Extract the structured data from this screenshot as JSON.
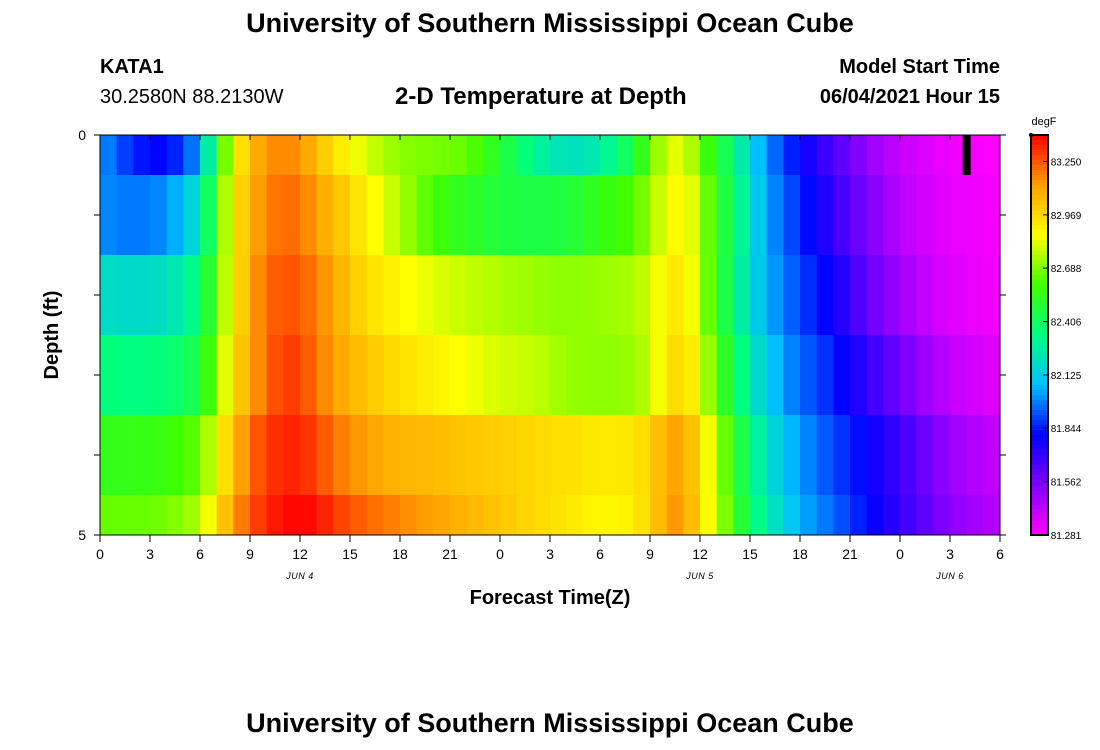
{
  "header": {
    "title": "University of Southern Mississippi Ocean Cube",
    "station": "KATA1",
    "coordinates": "30.2580N  88.2130W",
    "plot_title": "2-D Temperature at Depth",
    "model_start_label": "Model Start Time",
    "model_start_value": "06/04/2021 Hour 15"
  },
  "footer": {
    "title": "University of Southern Mississippi Ocean Cube"
  },
  "colors": {
    "palette": [
      "#ff00ff",
      "#8000ff",
      "#0000ff",
      "#00c0ff",
      "#00ff80",
      "#40ff00",
      "#ffff00",
      "#ffa000",
      "#ff0000"
    ]
  },
  "chart_data": {
    "type": "heatmap",
    "xlabel": "Forecast Time(Z)",
    "ylabel": "Depth (ft)",
    "x_tick_labels": [
      "0",
      "3",
      "6",
      "9",
      "12",
      "15",
      "18",
      "21",
      "0",
      "3",
      "6",
      "9",
      "12",
      "15",
      "18",
      "21",
      "0",
      "3",
      "6"
    ],
    "x_hours": [
      0,
      3,
      6,
      9,
      12,
      15,
      18,
      21,
      24,
      27,
      30,
      33,
      36,
      39,
      42,
      45,
      48,
      51,
      54
    ],
    "date_labels": [
      {
        "text": "JUN 4",
        "hour": 12
      },
      {
        "text": "JUN 5",
        "hour": 36
      },
      {
        "text": "JUN 6",
        "hour": 51
      }
    ],
    "y_tick_labels": [
      "0",
      "5"
    ],
    "ylim": [
      0,
      5
    ],
    "xlim": [
      0,
      54
    ],
    "layer_depths_ft": [
      0.25,
      1.0,
      2.0,
      3.0,
      4.0,
      4.75
    ],
    "layer_bounds_ft": [
      0,
      0.5,
      1.5,
      2.5,
      3.5,
      4.5,
      5.0
    ],
    "colorbar": {
      "unit": "degF",
      "tick_labels": [
        "83.250",
        "82.969",
        "82.688",
        "82.406",
        "82.125",
        "81.844",
        "81.562",
        "81.281"
      ],
      "range": [
        81.281,
        83.39
      ]
    },
    "hours": [
      0,
      2,
      4,
      6,
      7,
      8,
      9,
      10,
      11,
      12,
      13,
      14,
      16,
      18,
      20,
      22,
      24,
      26,
      28,
      30,
      32,
      33,
      34,
      35,
      36,
      37,
      38,
      39,
      40,
      41,
      42,
      44,
      46,
      48,
      50,
      52,
      54
    ],
    "layers": [
      {
        "depth_ft": 0.25,
        "values": [
          82.02,
          81.85,
          81.8,
          82.02,
          82.5,
          82.85,
          83.05,
          83.15,
          83.17,
          83.15,
          83.05,
          82.95,
          82.8,
          82.7,
          82.68,
          82.65,
          82.5,
          82.3,
          82.2,
          82.25,
          82.45,
          82.65,
          82.8,
          82.85,
          82.65,
          82.5,
          82.35,
          82.15,
          82.0,
          81.9,
          81.8,
          81.65,
          81.5,
          81.4,
          81.34,
          81.3,
          81.28
        ]
      },
      {
        "depth_ft": 1.0,
        "values": [
          82.0,
          81.97,
          82.0,
          82.2,
          82.6,
          82.9,
          83.08,
          83.18,
          83.22,
          83.2,
          83.12,
          83.05,
          82.9,
          82.75,
          82.6,
          82.52,
          82.47,
          82.45,
          82.47,
          82.55,
          82.62,
          82.72,
          82.85,
          82.9,
          82.75,
          82.55,
          82.38,
          82.2,
          82.03,
          81.95,
          81.86,
          81.7,
          81.55,
          81.43,
          81.35,
          81.32,
          81.3
        ]
      },
      {
        "depth_ft": 2.0,
        "values": [
          82.2,
          82.18,
          82.2,
          82.35,
          82.65,
          82.9,
          83.1,
          83.22,
          83.26,
          83.24,
          83.18,
          83.1,
          82.95,
          82.88,
          82.82,
          82.78,
          82.75,
          82.72,
          82.7,
          82.72,
          82.75,
          82.8,
          82.9,
          82.95,
          82.75,
          82.55,
          82.35,
          82.18,
          82.05,
          81.98,
          81.9,
          81.78,
          81.6,
          81.48,
          81.38,
          81.33,
          81.3
        ]
      },
      {
        "depth_ft": 3.0,
        "values": [
          82.35,
          82.33,
          82.35,
          82.45,
          82.7,
          82.95,
          83.1,
          83.22,
          83.3,
          83.28,
          83.2,
          83.12,
          83.02,
          82.95,
          82.9,
          82.85,
          82.8,
          82.78,
          82.72,
          82.7,
          82.72,
          82.78,
          82.92,
          83.0,
          82.82,
          82.62,
          82.42,
          82.25,
          82.12,
          82.02,
          81.95,
          81.85,
          81.7,
          81.58,
          81.45,
          81.38,
          81.34
        ]
      },
      {
        "depth_ft": 4.0,
        "values": [
          82.55,
          82.55,
          82.57,
          82.65,
          82.85,
          83.05,
          83.2,
          83.3,
          83.33,
          83.33,
          83.28,
          83.2,
          83.12,
          83.07,
          83.05,
          83.02,
          83.0,
          82.97,
          82.95,
          82.92,
          82.93,
          82.98,
          83.1,
          83.12,
          82.95,
          82.75,
          82.55,
          82.35,
          82.2,
          82.1,
          82.02,
          81.9,
          81.8,
          81.68,
          81.55,
          81.45,
          81.4
        ]
      },
      {
        "depth_ft": 4.75,
        "values": [
          82.65,
          82.65,
          82.67,
          82.75,
          82.95,
          83.12,
          83.25,
          83.33,
          83.37,
          83.39,
          83.36,
          83.3,
          83.22,
          83.17,
          83.12,
          83.07,
          83.02,
          82.97,
          82.93,
          82.88,
          82.9,
          82.98,
          83.12,
          83.15,
          82.95,
          82.78,
          82.58,
          82.4,
          82.25,
          82.15,
          82.05,
          81.95,
          81.82,
          81.7,
          81.58,
          81.48,
          81.43
        ]
      }
    ],
    "marker": {
      "hour": 52,
      "depth_from_ft": 0,
      "depth_to_ft": 0.5,
      "color": "#000000"
    }
  }
}
